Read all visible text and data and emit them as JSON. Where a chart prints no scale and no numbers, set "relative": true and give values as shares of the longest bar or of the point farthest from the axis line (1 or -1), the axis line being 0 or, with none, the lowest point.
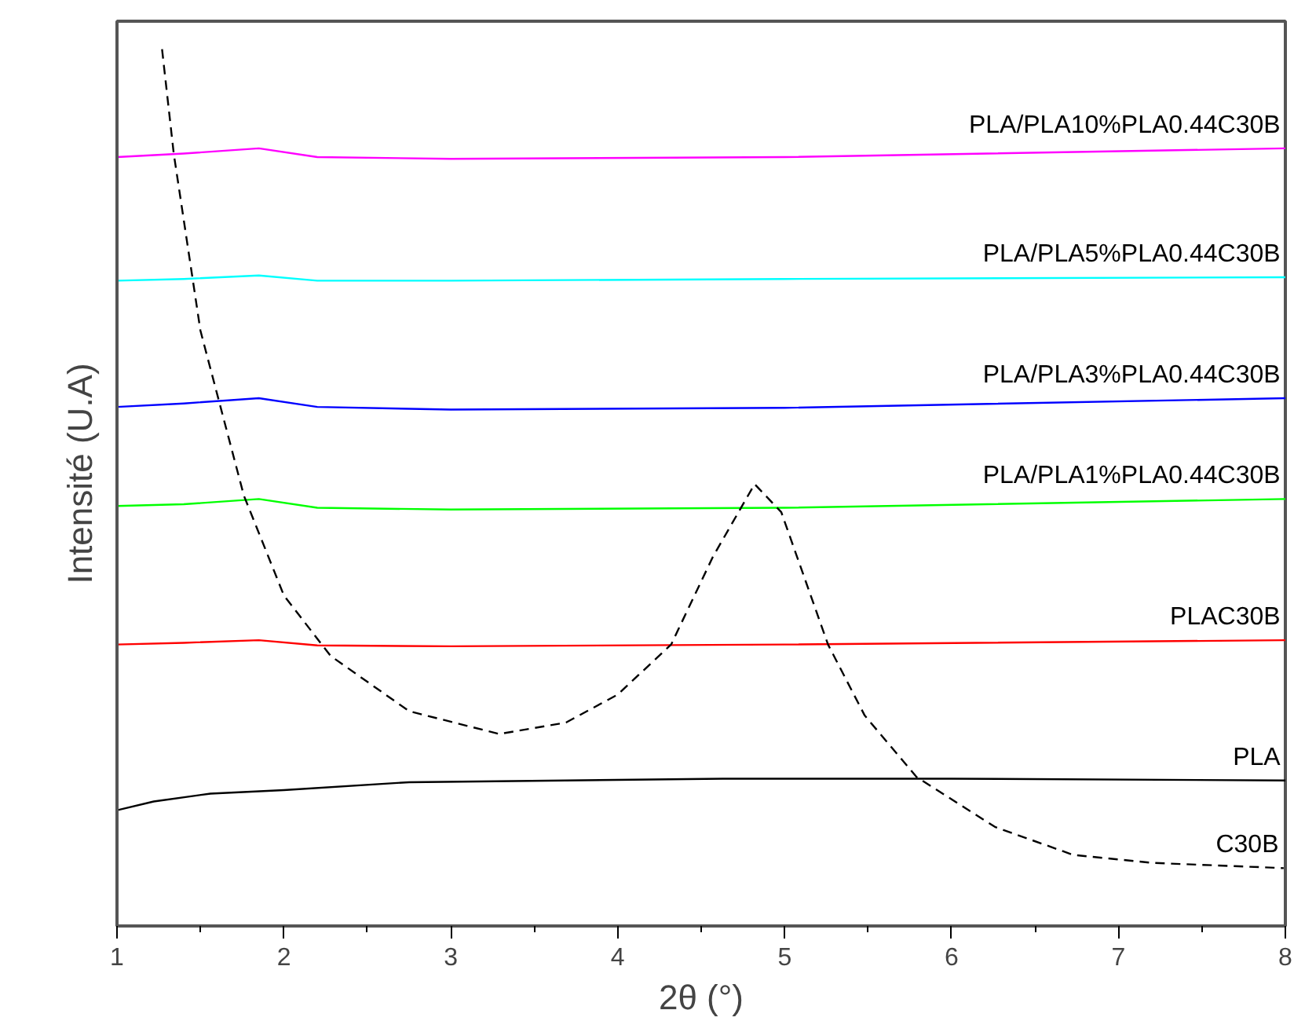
{
  "chart_data": {
    "type": "line",
    "relative": true,
    "xlabel": "2θ (°)",
    "ylabel": "Intensité (U.A)",
    "xlim": [
      1,
      8
    ],
    "xticks": [
      1,
      2,
      3,
      4,
      5,
      6,
      7,
      8
    ],
    "legend": false,
    "grid": false,
    "series": [
      {
        "name": "PLA/PLA10%PLA0.44C30B",
        "color": "#ff00ff",
        "line_style": "solid",
        "x": [
          1,
          1.4,
          1.85,
          2.2,
          3,
          5,
          8
        ],
        "values": [
          0.877,
          0.881,
          0.887,
          0.877,
          0.875,
          0.877,
          0.887
        ]
      },
      {
        "name": "PLA/PLA5%PLA0.44C30B",
        "color": "#00ffff",
        "line_style": "solid",
        "x": [
          1,
          1.4,
          1.85,
          2.2,
          3,
          5,
          8
        ],
        "values": [
          0.736,
          0.738,
          0.742,
          0.736,
          0.736,
          0.738,
          0.74
        ]
      },
      {
        "name": "PLA/PLA3%PLA0.44C30B",
        "color": "#0000ff",
        "line_style": "solid",
        "x": [
          1,
          1.4,
          1.85,
          2.2,
          3,
          5,
          8
        ],
        "values": [
          0.592,
          0.596,
          0.602,
          0.592,
          0.589,
          0.591,
          0.602
        ]
      },
      {
        "name": "PLA/PLA1%PLA0.44C30B",
        "color": "#00ff00",
        "line_style": "solid",
        "x": [
          1,
          1.4,
          1.85,
          2.2,
          3,
          5,
          8
        ],
        "values": [
          0.479,
          0.481,
          0.487,
          0.477,
          0.475,
          0.477,
          0.487
        ]
      },
      {
        "name": "PLAC30B",
        "color": "#ff0000",
        "line_style": "solid",
        "x": [
          1,
          1.4,
          1.85,
          2.2,
          3,
          5,
          8
        ],
        "values": [
          0.321,
          0.323,
          0.326,
          0.32,
          0.319,
          0.321,
          0.326
        ]
      },
      {
        "name": "PLA",
        "color": "#000000",
        "line_style": "solid",
        "x": [
          1,
          1.22,
          1.56,
          2.0,
          2.75,
          3.69,
          4.63,
          6,
          8
        ],
        "values": [
          0.132,
          0.142,
          0.151,
          0.155,
          0.164,
          0.166,
          0.168,
          0.168,
          0.166
        ]
      },
      {
        "name": "C30B",
        "color": "#000000",
        "line_style": "dashed",
        "x": [
          1.27,
          1.34,
          1.5,
          1.76,
          2.0,
          2.28,
          2.75,
          3.29,
          3.69,
          4.0,
          4.32,
          4.57,
          4.82,
          4.98,
          5.26,
          5.48,
          5.79,
          6.26,
          6.73,
          7.2,
          7.99
        ],
        "values": [
          1.0,
          0.881,
          0.679,
          0.491,
          0.377,
          0.308,
          0.245,
          0.219,
          0.232,
          0.264,
          0.321,
          0.421,
          0.504,
          0.472,
          0.321,
          0.24,
          0.17,
          0.113,
          0.081,
          0.072,
          0.066
        ]
      }
    ]
  }
}
